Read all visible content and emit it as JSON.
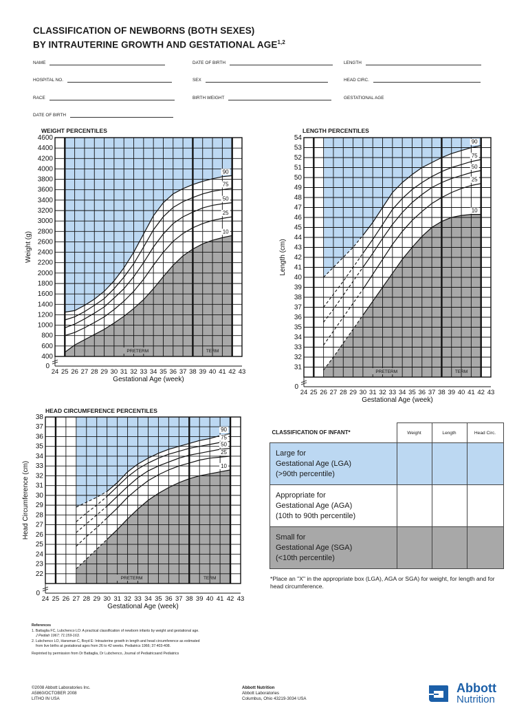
{
  "title": {
    "line1": "CLASSIFICATION OF NEWBORNS (BOTH SEXES)",
    "line2": "BY INTRAUTERINE GROWTH AND GESTATIONAL AGE",
    "sup": "1,2"
  },
  "fields": {
    "name": "NAME",
    "date_of_birth_1": "DATE OF BIRTH",
    "length": "LENGTH",
    "hospital_no": "HOSPITAL NO.",
    "sex": "SEX",
    "head_circ": "HEAD CIRC.",
    "race": "RACE",
    "birth_weight": "BIRTH WEIGHT",
    "gestational_age": "GESTATIONAL AGE",
    "date_of_birth_2": "DATE OF BIRTH"
  },
  "chart_data": [
    {
      "type": "line",
      "title": "WEIGHT PERCENTILES",
      "xlabel": "Gestational Age (week)",
      "ylabel": "Weight (g)",
      "xlim": [
        24,
        43
      ],
      "ylim": [
        0,
        4600
      ],
      "x_ticks": [
        24,
        25,
        26,
        27,
        28,
        29,
        30,
        31,
        32,
        33,
        34,
        35,
        36,
        37,
        38,
        39,
        40,
        41,
        42,
        43
      ],
      "y_ticks": [
        400,
        600,
        800,
        1000,
        1200,
        1400,
        1600,
        1800,
        2000,
        2200,
        2400,
        2600,
        2800,
        3000,
        3200,
        3400,
        3600,
        3800,
        4000,
        4200,
        4400,
        4600
      ],
      "zero_label": "0",
      "x": [
        25,
        26,
        27,
        28,
        29,
        30,
        31,
        32,
        33,
        34,
        35,
        36,
        37,
        38,
        39,
        40,
        41,
        42
      ],
      "series": [
        {
          "name": "90",
          "values": [
            1250,
            1280,
            1380,
            1500,
            1650,
            1850,
            2100,
            2400,
            2750,
            3100,
            3350,
            3520,
            3620,
            3700,
            3760,
            3810,
            3850,
            3870
          ]
        },
        {
          "name": "75",
          "values": [
            1100,
            1160,
            1260,
            1380,
            1510,
            1700,
            1920,
            2180,
            2500,
            2830,
            3080,
            3260,
            3370,
            3450,
            3520,
            3570,
            3600,
            3630
          ]
        },
        {
          "name": "50",
          "values": [
            950,
            1020,
            1120,
            1230,
            1350,
            1520,
            1700,
            1930,
            2200,
            2500,
            2750,
            2950,
            3080,
            3170,
            3250,
            3300,
            3330,
            3350
          ]
        },
        {
          "name": "25",
          "values": [
            800,
            860,
            950,
            1050,
            1160,
            1300,
            1460,
            1650,
            1880,
            2150,
            2400,
            2610,
            2760,
            2870,
            2950,
            3010,
            3050,
            3080
          ]
        },
        {
          "name": "10",
          "values": [
            480,
            620,
            720,
            820,
            920,
            1040,
            1170,
            1320,
            1490,
            1700,
            1930,
            2150,
            2330,
            2460,
            2560,
            2630,
            2680,
            2720
          ]
        }
      ],
      "region_labels": {
        "preterm": "PRETERM",
        "term": "TERM"
      }
    },
    {
      "type": "line",
      "title": "LENGTH PERCENTILES",
      "xlabel": "Gestational Age (week)",
      "ylabel": "Length (cm)",
      "xlim": [
        24,
        43
      ],
      "ylim": [
        30,
        54
      ],
      "x_ticks": [
        24,
        25,
        26,
        27,
        28,
        29,
        30,
        31,
        32,
        33,
        34,
        35,
        36,
        37,
        38,
        39,
        40,
        41,
        42,
        43
      ],
      "y_ticks": [
        31,
        32,
        33,
        34,
        35,
        36,
        37,
        38,
        39,
        40,
        41,
        42,
        43,
        44,
        45,
        46,
        47,
        48,
        49,
        50,
        51,
        52,
        53,
        54
      ],
      "zero_label": "0",
      "x": [
        26,
        27,
        28,
        29,
        30,
        31,
        32,
        33,
        34,
        35,
        36,
        37,
        38,
        39,
        40,
        41,
        42
      ],
      "series": [
        {
          "name": "90",
          "values": [
            40,
            41,
            42,
            43,
            44.2,
            45.5,
            47,
            48.5,
            49.5,
            50.3,
            51,
            51.5,
            52,
            52.4,
            52.7,
            53,
            53.2
          ]
        },
        {
          "name": "75",
          "values": [
            37,
            38.3,
            39.6,
            41,
            42.4,
            43.8,
            45.3,
            46.8,
            47.9,
            48.8,
            49.5,
            50.1,
            50.6,
            51,
            51.3,
            51.6,
            51.8
          ]
        },
        {
          "name": "50",
          "values": [
            35.5,
            36.8,
            38.2,
            39.6,
            41,
            42.4,
            43.9,
            45.3,
            46.5,
            47.5,
            48.3,
            49,
            49.5,
            49.9,
            50.2,
            50.5,
            50.7
          ]
        },
        {
          "name": "25",
          "values": [
            33.2,
            34.6,
            36,
            37.4,
            38.8,
            40.3,
            41.8,
            43.3,
            44.6,
            45.7,
            46.6,
            47.4,
            48,
            48.5,
            48.9,
            49.2,
            49.4
          ]
        },
        {
          "name": "10",
          "values": [
            30.7,
            32,
            33.4,
            34.8,
            36.2,
            37.6,
            39,
            40.4,
            41.8,
            43,
            44.1,
            45,
            45.6,
            46,
            46.2,
            46.3,
            46.3
          ]
        }
      ],
      "dashed_until": 30,
      "region_labels": {
        "preterm": "PRETERM",
        "term": "TERM"
      }
    },
    {
      "type": "line",
      "title": "HEAD CIRCUMFERENCE PERCENTILES",
      "xlabel": "Gestational Age (week)",
      "ylabel": "Head Circumference (cm)",
      "xlim": [
        24,
        43
      ],
      "ylim": [
        21,
        38
      ],
      "x_ticks": [
        24,
        25,
        26,
        27,
        28,
        29,
        30,
        31,
        32,
        33,
        34,
        35,
        36,
        37,
        38,
        39,
        40,
        41,
        42,
        43
      ],
      "y_ticks": [
        22,
        23,
        24,
        25,
        26,
        27,
        28,
        29,
        30,
        31,
        32,
        33,
        34,
        35,
        36,
        37,
        38
      ],
      "zero_label": "0",
      "x": [
        27,
        28,
        29,
        30,
        31,
        32,
        33,
        34,
        35,
        36,
        37,
        38,
        39,
        40,
        41,
        42
      ],
      "series": [
        {
          "name": "90",
          "values": [
            28.8,
            29.3,
            29.8,
            30.4,
            31.3,
            32.4,
            33.2,
            33.8,
            34.3,
            34.7,
            35,
            35.3,
            35.6,
            35.8,
            36.1,
            36.3
          ]
        },
        {
          "name": "75",
          "values": [
            27.3,
            28.2,
            29,
            29.9,
            30.9,
            31.9,
            32.7,
            33.3,
            33.8,
            34.2,
            34.5,
            34.8,
            35,
            35.2,
            35.4,
            35.5
          ]
        },
        {
          "name": "50",
          "values": [
            26.2,
            27.1,
            28,
            28.9,
            29.9,
            30.9,
            31.8,
            32.5,
            33,
            33.4,
            33.8,
            34.1,
            34.3,
            34.5,
            34.7,
            34.8
          ]
        },
        {
          "name": "25",
          "values": [
            24.8,
            25.8,
            26.7,
            27.7,
            28.7,
            29.8,
            30.7,
            31.5,
            32.1,
            32.6,
            33,
            33.3,
            33.6,
            33.8,
            33.9,
            34
          ]
        },
        {
          "name": "10",
          "values": [
            22.5,
            23.5,
            24.5,
            25.5,
            26.5,
            27.6,
            28.6,
            29.5,
            30.2,
            30.8,
            31.3,
            31.7,
            32,
            32.2,
            32.4,
            32.6
          ]
        }
      ],
      "dashed_until": 30,
      "region_labels": {
        "preterm": "PRETERM",
        "term": "TERM"
      }
    }
  ],
  "classification": {
    "heading": "CLASSIFICATION OF INFANT*",
    "columns": [
      "Weight",
      "Length",
      "Head Circ."
    ],
    "rows": [
      {
        "line1": "Large for",
        "line2": "Gestational Age (LGA)",
        "line3": "(>90th percentile)",
        "color": "#bcd8f2"
      },
      {
        "line1": "Appropriate for",
        "line2": "Gestational Age (AGA)",
        "line3": "(10th to 90th percentile)",
        "color": "#ffffff"
      },
      {
        "line1": "Small for",
        "line2": "Gestational Age (SGA)",
        "line3": "(<10th percentile)",
        "color": "#a8a8a8"
      }
    ],
    "note": "*Place an \"X\" in the appropriate box (LGA), AGA or SGA) for weight, for length and for head circumference."
  },
  "references": {
    "heading": "References",
    "r1a": "1. Battaglia FC, Lubchenco LO: A practical classification of newborn infants by weight and gestational age.",
    "r1b": "J Pediatr 1967; 71:159-163.",
    "r2a": "2. Lubchenco LO, Hansman C, Boyd E: Intrauterine growth in length and head circumference as estimated",
    "r2b": "from live births at gestational ages from 26 to 42 weeks. Pediatrics 1966; 37:403-408.",
    "reprint": "Reprinted by permission from Dr Battaglia, Dr Lubchenco, Journal of Pediatricsand Pediatrics"
  },
  "footer": {
    "copyright": "©2008 Abbott Laboratories Inc.",
    "code": "A5860/OCTOBER  2008",
    "litho": "LITHO IN USA",
    "company": "Abbott Nutrition",
    "company2": "Abbott Laboratories",
    "address": "Columbus, Ohio 43219-3034 USA",
    "logo1": "Abbott",
    "logo2": "Nutrition"
  },
  "colors": {
    "lga": "#bcd8f2",
    "sga": "#a8a8a8",
    "brand": "#1b5fa8"
  }
}
